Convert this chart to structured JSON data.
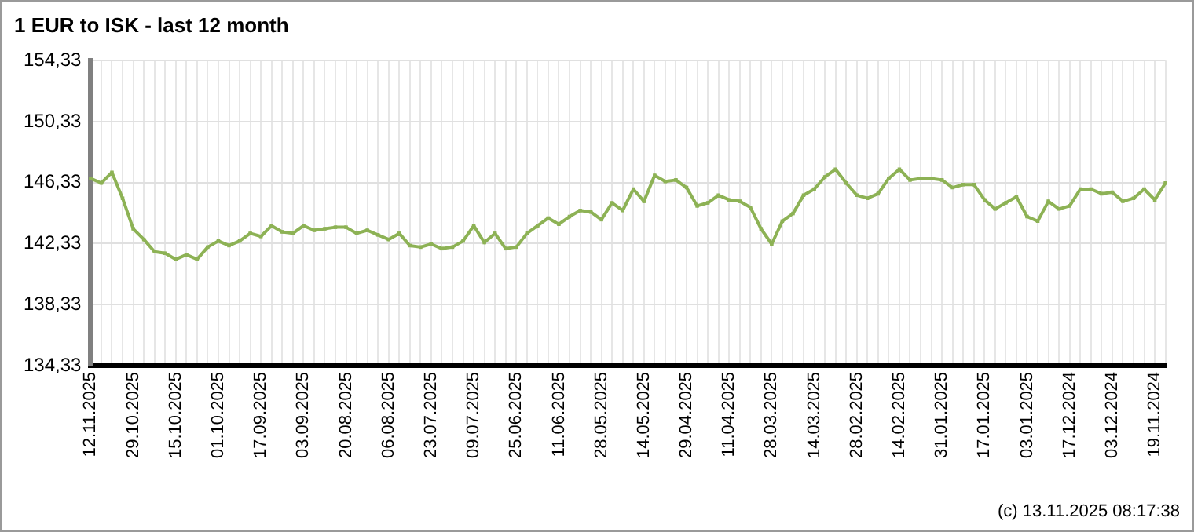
{
  "chart_data": {
    "type": "line",
    "title": "1 EUR to ISK - last 12 month",
    "categories": [
      "12.11.2025",
      null,
      null,
      null,
      "29.10.2025",
      null,
      null,
      null,
      "15.10.2025",
      null,
      null,
      null,
      "01.10.2025",
      null,
      null,
      null,
      "17.09.2025",
      null,
      null,
      null,
      "03.09.2025",
      null,
      null,
      null,
      "20.08.2025",
      null,
      null,
      null,
      "06.08.2025",
      null,
      null,
      null,
      "23.07.2025",
      null,
      null,
      null,
      "09.07.2025",
      null,
      null,
      null,
      "25.06.2025",
      null,
      null,
      null,
      "11.06.2025",
      null,
      null,
      null,
      "28.05.2025",
      null,
      null,
      null,
      "14.05.2025",
      null,
      null,
      null,
      "29.04.2025",
      null,
      null,
      null,
      "11.04.2025",
      null,
      null,
      null,
      "28.03.2025",
      null,
      null,
      null,
      "14.03.2025",
      null,
      null,
      null,
      "28.02.2025",
      null,
      null,
      null,
      "14.02.2025",
      null,
      null,
      null,
      "31.01.2025",
      null,
      null,
      null,
      "17.01.2025",
      null,
      null,
      null,
      "03.01.2025",
      null,
      null,
      null,
      "17.12.2024",
      null,
      null,
      null,
      "03.12.2024",
      null,
      null,
      null,
      "19.11.2024",
      null
    ],
    "series": [
      {
        "color": "#8db255",
        "values": [
          146.6,
          146.3,
          147.0,
          145.3,
          143.3,
          142.6,
          141.8,
          141.7,
          141.3,
          141.6,
          141.3,
          142.1,
          142.5,
          142.2,
          142.5,
          143.0,
          142.8,
          143.5,
          143.1,
          143.0,
          143.5,
          143.2,
          143.3,
          143.4,
          143.4,
          143.0,
          143.2,
          142.9,
          142.6,
          143.0,
          142.2,
          142.1,
          142.3,
          142.0,
          142.1,
          142.5,
          143.5,
          142.4,
          143.0,
          142.0,
          142.1,
          143.0,
          143.5,
          144.0,
          143.6,
          144.1,
          144.5,
          144.4,
          143.9,
          145.0,
          144.5,
          145.9,
          145.1,
          146.8,
          146.4,
          146.5,
          146.0,
          144.8,
          145.0,
          145.5,
          145.2,
          145.1,
          144.7,
          143.3,
          142.3,
          143.8,
          144.3,
          145.5,
          145.9,
          146.7,
          147.2,
          146.3,
          145.5,
          145.3,
          145.6,
          146.6,
          147.2,
          146.5,
          146.6,
          146.6,
          146.5,
          146.0,
          146.2,
          146.2,
          145.2,
          144.6,
          145.0,
          145.4,
          144.1,
          143.8,
          145.1,
          144.6,
          144.8,
          145.9,
          145.9,
          145.6,
          145.7,
          145.1,
          145.3,
          145.9,
          145.2,
          146.3
        ]
      }
    ],
    "ylim": [
      134.33,
      154.33
    ],
    "yticks": [
      {
        "value": 134.33,
        "label": "134,33"
      },
      {
        "value": 138.33,
        "label": "138,33"
      },
      {
        "value": 142.33,
        "label": "142,33"
      },
      {
        "value": 146.33,
        "label": "146,33"
      },
      {
        "value": 150.33,
        "label": "150,33"
      },
      {
        "value": 154.33,
        "label": "154,33"
      }
    ],
    "grid": true,
    "legend": false,
    "marker": "square",
    "line_style": "solid",
    "annotations": [
      "(c) 13.11.2025 08:17:38"
    ]
  }
}
